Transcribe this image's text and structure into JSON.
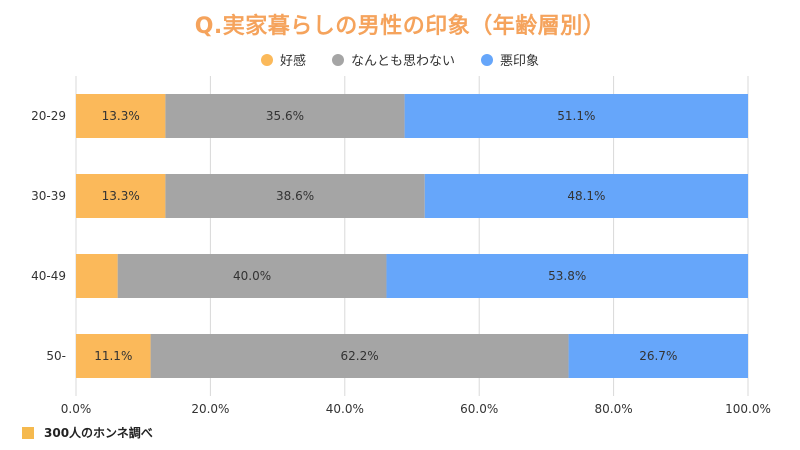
{
  "chart_data": {
    "type": "bar",
    "orientation": "horizontal",
    "stacked": true,
    "title": "Q.実家暮らしの男性の印象（年齢層別）",
    "categories": [
      "20-29",
      "30-39",
      "40-49",
      "50-"
    ],
    "series": [
      {
        "name": "好感",
        "color": "#fbb95a",
        "values": [
          13.3,
          13.3,
          6.2,
          11.1
        ],
        "labels": [
          "13.3%",
          "13.3%",
          "",
          "11.1%"
        ]
      },
      {
        "name": "なんとも思わない",
        "color": "#a5a5a5",
        "values": [
          35.6,
          38.6,
          40.0,
          62.2
        ],
        "labels": [
          "35.6%",
          "38.6%",
          "40.0%",
          "62.2%"
        ]
      },
      {
        "name": "悪印象",
        "color": "#66a6fa",
        "values": [
          51.1,
          48.1,
          53.8,
          26.7
        ],
        "labels": [
          "51.1%",
          "48.1%",
          "53.8%",
          "26.7%"
        ]
      }
    ],
    "x_ticks": [
      "0.0%",
      "20.0%",
      "40.0%",
      "60.0%",
      "80.0%",
      "100.0%"
    ],
    "xlim": [
      0,
      100
    ],
    "grid": "vertical",
    "legend_position": "top"
  },
  "footer": {
    "text": "300人のホンネ調べ"
  }
}
